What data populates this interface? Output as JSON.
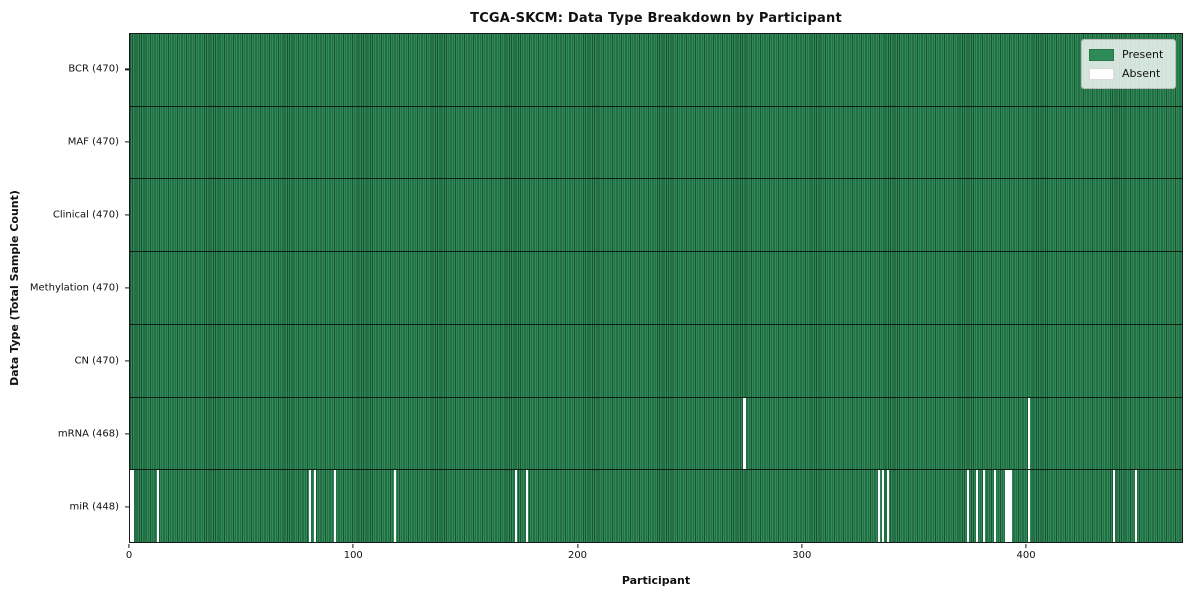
{
  "figure": {
    "kind": "matplotlib-style heatmap screenshot"
  },
  "chart_data": {
    "type": "heatmap",
    "title": "TCGA-SKCM: Data Type Breakdown by Participant",
    "xlabel": "Participant",
    "ylabel": "Data Type (Total Sample Count)",
    "n_participants": 470,
    "xlim": [
      0,
      470
    ],
    "x_ticks": [
      0,
      100,
      200,
      300,
      400
    ],
    "grid": false,
    "legend_position": "upper right",
    "colors": {
      "present": "#2e8b57",
      "absent": "#ffffff",
      "cell_edge": "#1b5334",
      "row_separator": "#1a1a1a",
      "plot_border": "#1a1a1a"
    },
    "rows": [
      {
        "data_type": "BCR",
        "label": "BCR (470)",
        "total": 470,
        "absent_participants": []
      },
      {
        "data_type": "MAF",
        "label": "MAF (470)",
        "total": 470,
        "absent_participants": []
      },
      {
        "data_type": "Clinical",
        "label": "Clinical (470)",
        "total": 470,
        "absent_participants": []
      },
      {
        "data_type": "Methylation",
        "label": "Methylation (470)",
        "total": 470,
        "absent_participants": []
      },
      {
        "data_type": "CN",
        "label": "CN (470)",
        "total": 470,
        "absent_participants": []
      },
      {
        "data_type": "mRNA",
        "label": "mRNA (468)",
        "total": 468,
        "absent_participants": [
          274,
          401
        ]
      },
      {
        "data_type": "miR",
        "label": "miR (448)",
        "total": 448,
        "absent_participants": [
          0,
          1,
          12,
          80,
          82,
          91,
          118,
          172,
          177,
          334,
          336,
          338,
          374,
          378,
          381,
          386,
          391,
          392,
          393,
          401,
          439,
          449
        ]
      }
    ],
    "legend": [
      {
        "label": "Present",
        "color": "#2e8b57"
      },
      {
        "label": "Absent",
        "color": "#ffffff"
      }
    ]
  }
}
